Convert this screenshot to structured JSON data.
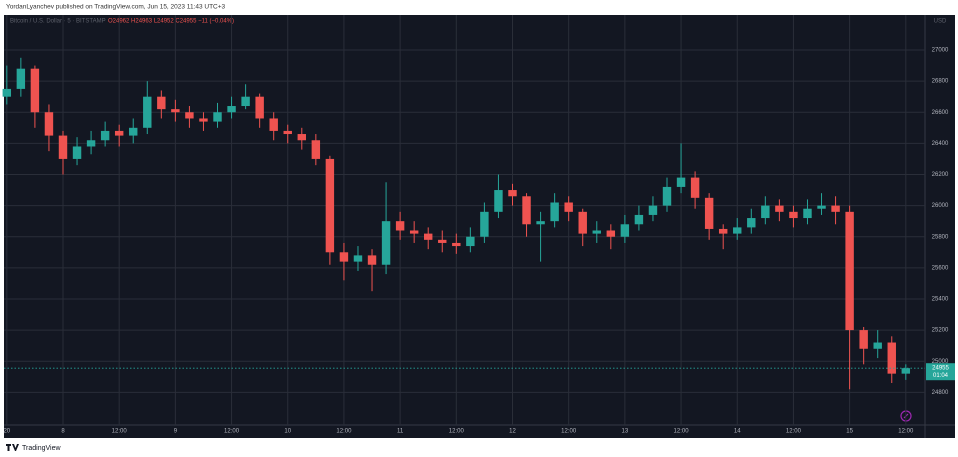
{
  "header": "YordanLyanchev published on TradingView.com, Jun 15, 2023 11:43 UTC+3",
  "footer": "TradingView",
  "chart_data": {
    "type": "candlestick",
    "legend": {
      "symbol": "Bitcoin / U.S. Dollar · 5 · BITSTAMP",
      "ohlc": "O24962 H24963 L24952 C24955 −11 (−0.04%)"
    },
    "currency": "USD",
    "countdown": "01:04",
    "up_color": "#26a69a",
    "down_color": "#ef5350",
    "grid": true,
    "xlim": [
      -12.6,
      184.1
    ],
    "ylim": [
      24590,
      27225
    ],
    "yticks": [
      24800,
      25000,
      25200,
      25400,
      25600,
      25800,
      26000,
      26200,
      26400,
      26600,
      26800,
      27000
    ],
    "xticks": [
      {
        "value": -12,
        "label": "20"
      },
      {
        "value": 0,
        "label": "8"
      },
      {
        "value": 12,
        "label": "12:00"
      },
      {
        "value": 24,
        "label": "9"
      },
      {
        "value": 36,
        "label": "12:00"
      },
      {
        "value": 48,
        "label": "10"
      },
      {
        "value": 60,
        "label": "12:00"
      },
      {
        "value": 72,
        "label": "11"
      },
      {
        "value": 84,
        "label": "12:00"
      },
      {
        "value": 96,
        "label": "12"
      },
      {
        "value": 108,
        "label": "12:00"
      },
      {
        "value": 120,
        "label": "13"
      },
      {
        "value": 132,
        "label": "12:00"
      },
      {
        "value": 144,
        "label": "14"
      },
      {
        "value": 156,
        "label": "12:00"
      },
      {
        "value": 168,
        "label": "15"
      },
      {
        "value": 180,
        "label": "12:00"
      }
    ],
    "x": [
      -12,
      -9,
      -6,
      -3,
      0,
      3,
      6,
      9,
      12,
      15,
      18,
      21,
      24,
      27,
      30,
      33,
      36,
      39,
      42,
      45,
      48,
      51,
      54,
      57,
      60,
      63,
      66,
      69,
      72,
      75,
      78,
      81,
      84,
      87,
      90,
      93,
      96,
      99,
      102,
      105,
      108,
      111,
      114,
      117,
      120,
      123,
      126,
      129,
      132,
      135,
      138,
      141,
      144,
      147,
      150,
      153,
      156,
      159,
      162,
      165,
      168,
      171,
      174,
      177,
      180
    ],
    "open": [
      26700,
      26750,
      26880,
      26600,
      26450,
      26300,
      26380,
      26420,
      26480,
      26450,
      26500,
      26700,
      26620,
      26600,
      26560,
      26540,
      26600,
      26640,
      26700,
      26560,
      26480,
      26460,
      26420,
      26300,
      25700,
      25640,
      25680,
      25620,
      25900,
      25840,
      25820,
      25780,
      25760,
      25740,
      25800,
      25960,
      26100,
      26060,
      25880,
      25900,
      26020,
      25960,
      25820,
      25840,
      25800,
      25880,
      25940,
      26000,
      26120,
      26180,
      26050,
      25850,
      25820,
      25860,
      25920,
      26000,
      25960,
      25920,
      25980,
      26000,
      25960,
      25200,
      25080,
      25120,
      24920
    ],
    "high": [
      26900,
      26950,
      26900,
      26650,
      26480,
      26440,
      26480,
      26540,
      26520,
      26560,
      26800,
      26740,
      26680,
      26640,
      26600,
      26660,
      26700,
      26780,
      26720,
      26600,
      26520,
      26500,
      26460,
      26320,
      25760,
      25740,
      25720,
      26150,
      25960,
      25900,
      25860,
      25840,
      25820,
      25860,
      26020,
      26200,
      26140,
      26080,
      25960,
      26080,
      26060,
      25980,
      25900,
      25880,
      25940,
      26000,
      26060,
      26180,
      26400,
      26220,
      26080,
      25880,
      25920,
      25980,
      26060,
      26040,
      26000,
      26040,
      26080,
      26060,
      26000,
      25220,
      25200,
      25160,
      24980
    ],
    "low": [
      26650,
      26700,
      26500,
      26350,
      26200,
      26260,
      26330,
      26380,
      26380,
      26400,
      26460,
      26560,
      26540,
      26500,
      26480,
      26500,
      26560,
      26620,
      26500,
      26420,
      26400,
      26360,
      26260,
      25620,
      25520,
      25580,
      25450,
      25560,
      25780,
      25760,
      25720,
      25700,
      25690,
      25700,
      25760,
      25920,
      26000,
      25800,
      25640,
      25860,
      25900,
      25740,
      25760,
      25720,
      25760,
      25840,
      25900,
      25960,
      26080,
      25980,
      25780,
      25720,
      25780,
      25820,
      25880,
      25900,
      25860,
      25880,
      25940,
      25880,
      24820,
      24980,
      25020,
      24860,
      24880
    ],
    "close": [
      26750,
      26880,
      26600,
      26450,
      26300,
      26380,
      26420,
      26480,
      26450,
      26500,
      26700,
      26620,
      26600,
      26560,
      26540,
      26600,
      26640,
      26700,
      26560,
      26480,
      26460,
      26420,
      26300,
      25700,
      25640,
      25680,
      25620,
      25900,
      25840,
      25820,
      25780,
      25760,
      25740,
      25800,
      25960,
      26100,
      26060,
      25880,
      25900,
      26020,
      25960,
      25820,
      25840,
      25800,
      25880,
      25940,
      26000,
      26120,
      26180,
      26050,
      25850,
      25820,
      25860,
      25920,
      26000,
      25960,
      25920,
      25980,
      26000,
      25960,
      25200,
      25080,
      25120,
      24920,
      24955
    ]
  }
}
